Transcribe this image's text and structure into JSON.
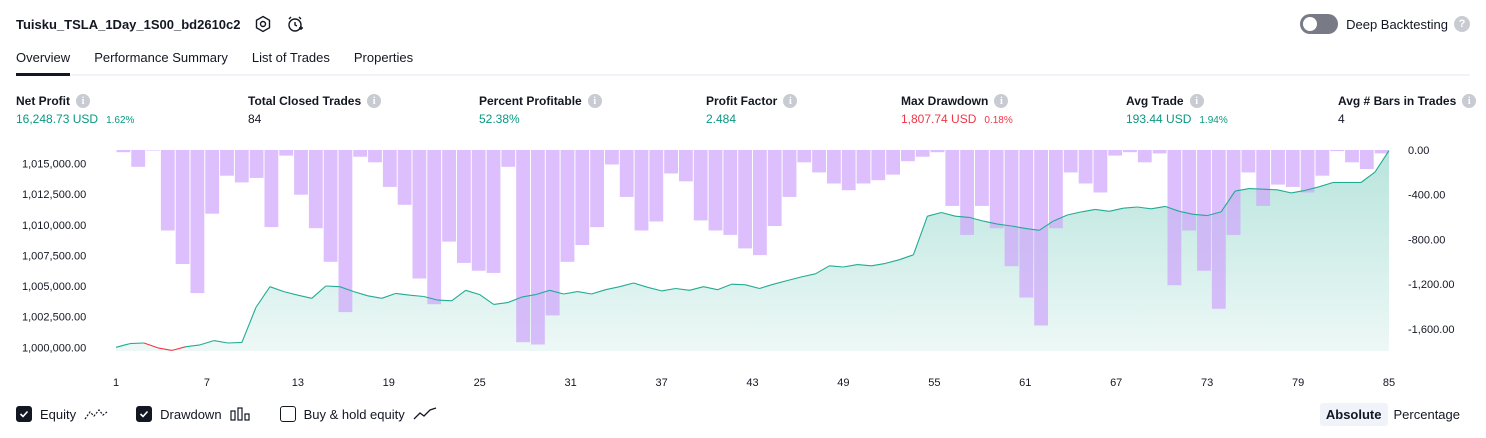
{
  "header": {
    "title": "Tuisku_TSLA_1Day_1S00_bd2610c2",
    "deep_backtesting_label": "Deep Backtesting"
  },
  "tabs": [
    {
      "label": "Overview",
      "active": true
    },
    {
      "label": "Performance Summary",
      "active": false
    },
    {
      "label": "List of Trades",
      "active": false
    },
    {
      "label": "Properties",
      "active": false
    }
  ],
  "metrics": {
    "net_profit": {
      "label": "Net Profit",
      "value": "16,248.73 USD",
      "pct": "1.62%"
    },
    "total_closed_trades": {
      "label": "Total Closed Trades",
      "value": "84"
    },
    "percent_profitable": {
      "label": "Percent Profitable",
      "value": "52.38%"
    },
    "profit_factor": {
      "label": "Profit Factor",
      "value": "2.484"
    },
    "max_drawdown": {
      "label": "Max Drawdown",
      "value": "1,807.74 USD",
      "pct": "0.18%"
    },
    "avg_trade": {
      "label": "Avg Trade",
      "value": "193.44 USD",
      "pct": "1.94%"
    },
    "avg_bars": {
      "label": "Avg # Bars in Trades",
      "value": "4"
    }
  },
  "legend": {
    "equity": "Equity",
    "drawdown": "Drawdown",
    "buy_hold": "Buy & hold equity"
  },
  "mode": {
    "absolute": "Absolute",
    "percentage": "Percentage"
  },
  "colors": {
    "equity_line": "#22ab94",
    "equity_fill": "#22ab94",
    "equity_negative": "#f23645",
    "drawdown_bar": "#cfa6fb",
    "positive": "#089981",
    "negative": "#f23645"
  },
  "chart_data": {
    "type": "area",
    "x_ticks": [
      1,
      7,
      13,
      19,
      25,
      31,
      37,
      43,
      49,
      55,
      61,
      67,
      73,
      79,
      85
    ],
    "left_axis_ticks": [
      "1,015,000.00",
      "1,012,500.00",
      "1,010,000.00",
      "1,007,500.00",
      "1,005,000.00",
      "1,002,500.00",
      "1,000,000.00"
    ],
    "left_ylim": [
      999700,
      1016100
    ],
    "right_axis_ticks": [
      "0.00",
      "-400.00",
      "-800.00",
      "-1,200.00",
      "-1,600.00"
    ],
    "right_ylim": [
      -1870,
      0
    ],
    "series": [
      {
        "name": "Equity",
        "axis": "left",
        "values": [
          1000000,
          1000300,
          1000350,
          999950,
          999750,
          1000050,
          1000200,
          1000550,
          1000350,
          1000400,
          1003250,
          1004950,
          1004550,
          1004250,
          1004000,
          1005000,
          1004950,
          1004550,
          1004200,
          1004000,
          1004400,
          1004250,
          1004150,
          1003850,
          1003800,
          1004650,
          1004300,
          1003500,
          1003650,
          1004100,
          1004300,
          1004650,
          1004350,
          1004550,
          1004350,
          1004700,
          1004950,
          1005250,
          1004900,
          1004600,
          1004800,
          1004650,
          1004950,
          1004700,
          1005150,
          1005100,
          1004800,
          1005150,
          1005450,
          1005750,
          1006000,
          1006650,
          1006550,
          1006750,
          1006650,
          1006850,
          1007150,
          1007550,
          1010700,
          1011000,
          1010700,
          1010600,
          1010300,
          1010050,
          1009900,
          1009700,
          1009550,
          1010300,
          1010800,
          1011050,
          1011250,
          1011100,
          1011350,
          1011450,
          1011300,
          1011500,
          1011100,
          1010850,
          1010750,
          1011050,
          1012750,
          1012950,
          1012900,
          1012850,
          1012600,
          1012800,
          1013100,
          1013450,
          1013450,
          1013450,
          1014300,
          1016050
        ]
      },
      {
        "name": "Drawdown",
        "axis": "right",
        "values": [
          -20,
          -150,
          0,
          -720,
          -1020,
          -1280,
          -570,
          -230,
          -290,
          -250,
          -690,
          -50,
          -400,
          -700,
          -1000,
          -1450,
          -60,
          -110,
          -330,
          -490,
          -1150,
          -1380,
          -820,
          -1010,
          -1080,
          -1100,
          -150,
          -1720,
          -1740,
          -1480,
          -1000,
          -850,
          -690,
          -130,
          -420,
          -720,
          -640,
          -210,
          -280,
          -630,
          -720,
          -760,
          -880,
          -940,
          -680,
          -420,
          -110,
          -200,
          -300,
          -360,
          -300,
          -270,
          -220,
          -100,
          -60,
          -20,
          -500,
          -760,
          -500,
          -700,
          -1040,
          -1320,
          -1570,
          -700,
          -200,
          -300,
          -380,
          -50,
          -20,
          -110,
          -30,
          -1210,
          -720,
          -1080,
          -1420,
          -760,
          -200,
          -500,
          -310,
          -330,
          -380,
          -230,
          -10,
          -110,
          -170,
          -30
        ]
      }
    ],
    "grid": false,
    "legend_position": "bottom-left"
  }
}
